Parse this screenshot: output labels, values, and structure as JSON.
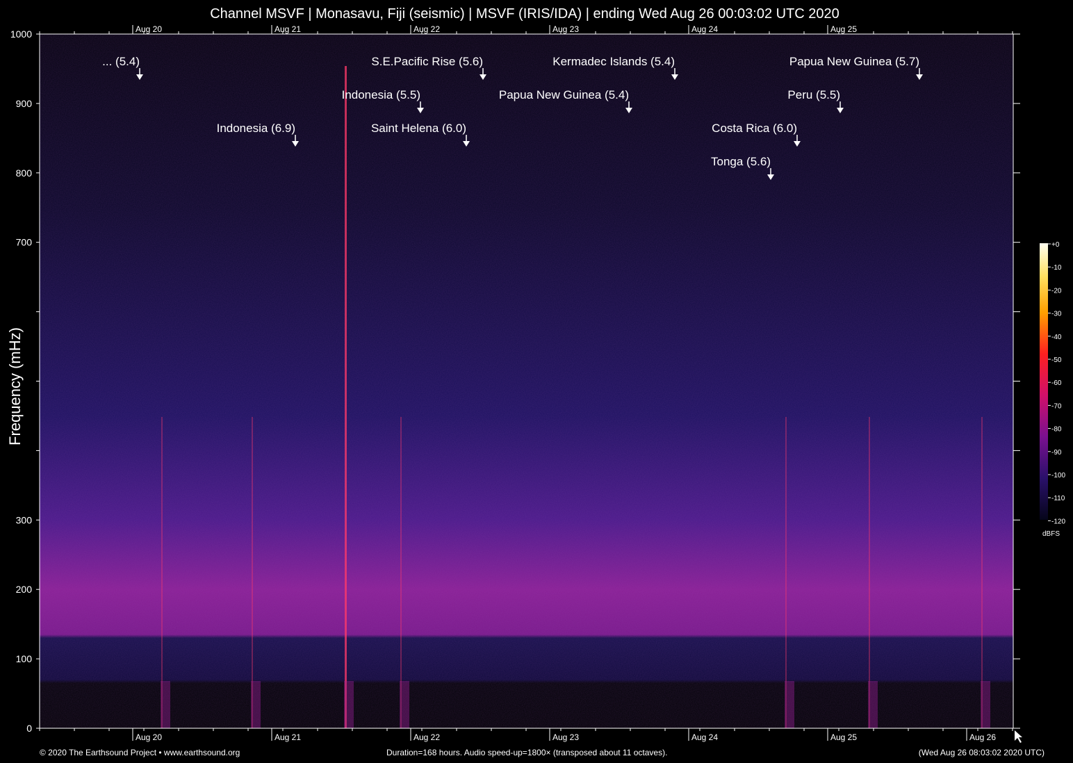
{
  "chart_data": {
    "type": "heatmap",
    "title": "Channel MSVF | Monasavu, Fiji (seismic) | MSVF (IRIS/IDA) | ending Wed Aug 26 00:03:02 UTC 2020",
    "ylabel": "Frequency (mHz)",
    "ylim": [
      0,
      1000
    ],
    "y_ticks": [
      0,
      100,
      200,
      300,
      400,
      500,
      600,
      700,
      800,
      900,
      1000
    ],
    "y_tick_labels": [
      "0",
      "100",
      "200",
      "300",
      "",
      "",
      "",
      "700",
      "800",
      "900",
      "1000"
    ],
    "x_tick_labels": [
      "Aug 20",
      "Aug 21",
      "Aug 22",
      "Aug 23",
      "Aug 24",
      "Aug 25",
      "Aug 26"
    ],
    "x_tick_labels_top": [
      "Aug 20",
      "Aug 21",
      "Aug 22",
      "Aug 23",
      "Aug 24",
      "Aug 25"
    ],
    "annotations": [
      {
        "label": "... (5.4)",
        "day": 0.05,
        "row": 0
      },
      {
        "label": "Indonesia (6.9)",
        "day": 1.17,
        "row": 2
      },
      {
        "label": "Indonesia (5.5)",
        "day": 2.07,
        "row": 1
      },
      {
        "label": "S.E.Pacific Rise (5.6)",
        "day": 2.52,
        "row": 0
      },
      {
        "label": "Saint Helena (6.0)",
        "day": 2.4,
        "row": 2
      },
      {
        "label": "Papua New Guinea (5.4)",
        "day": 3.57,
        "row": 1
      },
      {
        "label": "Kermadec Islands (5.4)",
        "day": 3.9,
        "row": 0
      },
      {
        "label": "Costa Rica (6.0)",
        "day": 4.78,
        "row": 2
      },
      {
        "label": "Tonga (5.6)",
        "day": 4.59,
        "row": 3
      },
      {
        "label": "Peru (5.5)",
        "day": 5.09,
        "row": 1
      },
      {
        "label": "Papua New Guinea (5.7)",
        "day": 5.66,
        "row": 0
      }
    ],
    "colorbar": {
      "unit": "dBFS",
      "ticks": [
        "+0",
        "-10",
        "-20",
        "-30",
        "-40",
        "-50",
        "-60",
        "-70",
        "-80",
        "-90",
        "-100",
        "-110",
        "-120"
      ]
    },
    "events_days": [
      0.21,
      0.86,
      1.53,
      1.93,
      4.7,
      5.3,
      6.11
    ],
    "colors": {
      "background": "#000000",
      "noise_low": "#1a1060",
      "noise_band": "#a020a0",
      "event": "#ff3a6a"
    }
  },
  "footer": {
    "left": "© 2020 The Earthsound Project • www.earthsound.org",
    "center": "Duration=168 hours. Audio speed-up=1800× (transposed about 11 octaves).",
    "right": "(Wed Aug 26 08:03:02 2020 UTC)"
  }
}
